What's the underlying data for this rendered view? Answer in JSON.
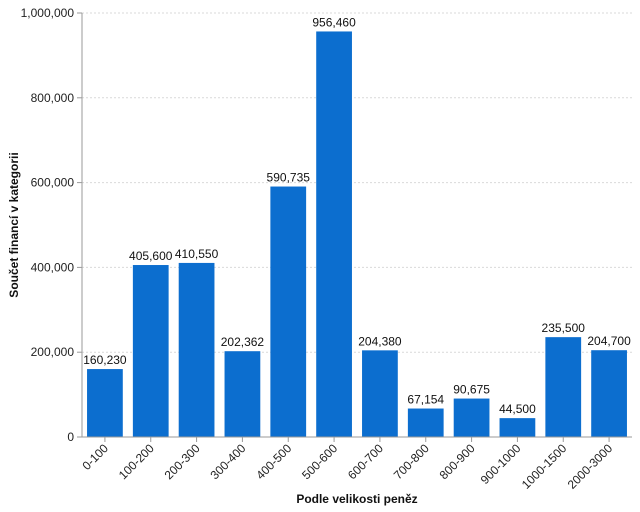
{
  "chart_data": {
    "type": "bar",
    "categories": [
      "0-100",
      "100-200",
      "200-300",
      "300-400",
      "400-500",
      "500-600",
      "600-700",
      "700-800",
      "800-900",
      "900-1000",
      "1000-1500",
      "2000-3000"
    ],
    "values": [
      160230,
      405600,
      410550,
      202362,
      590735,
      956460,
      204380,
      67154,
      90675,
      44500,
      235500,
      204700
    ],
    "value_labels": [
      "160,230",
      "405,600",
      "410,550",
      "202,362",
      "590,735",
      "956,460",
      "204,380",
      "67,154",
      "90,675",
      "44,500",
      "235,500",
      "204,700"
    ],
    "xlabel": "Podle velikosti peněz",
    "ylabel": "Součet financí v kategorii",
    "ylim": [
      0,
      1000000
    ],
    "yticks": [
      0,
      200000,
      400000,
      600000,
      800000,
      1000000
    ],
    "ytick_labels": [
      "0",
      "200,000",
      "400,000",
      "600,000",
      "800,000",
      "1,000,000"
    ],
    "grid": "horizontal dashed",
    "bar_color": "#0c6ecf"
  }
}
